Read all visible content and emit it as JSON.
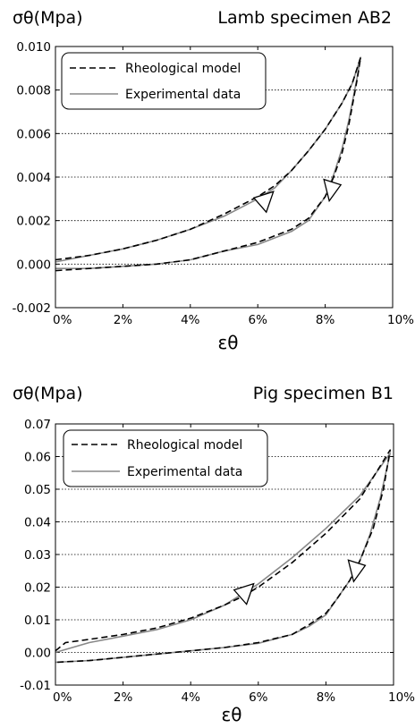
{
  "chart_data": [
    {
      "type": "line",
      "title": "Lamb specimen AB2",
      "ylabel": "σθ(Mpa)",
      "xlabel": "εθ",
      "xlim": [
        0,
        10
      ],
      "ylim": [
        -0.002,
        0.01
      ],
      "x_ticks": [
        "0%",
        "2%",
        "4%",
        "6%",
        "8%",
        "10%"
      ],
      "y_ticks": [
        "-0.002",
        "0.000",
        "0.002",
        "0.004",
        "0.006",
        "0.008",
        "0.010"
      ],
      "grid": "horizontal",
      "legend": "top-left",
      "series": [
        {
          "name": "Rheological model",
          "style": "dashed",
          "color": "#000000",
          "x": [
            0,
            1,
            2,
            3,
            4,
            5,
            5.5,
            6,
            6.5,
            7,
            7.5,
            8,
            8.5,
            8.8,
            9.05,
            8.95,
            8.7,
            8.5,
            8.25,
            8,
            7.5,
            7,
            6,
            5,
            4,
            3,
            2,
            1,
            0
          ],
          "y": [
            0.0002,
            0.0004,
            0.0007,
            0.0011,
            0.0016,
            0.0023,
            0.0027,
            0.0031,
            0.0036,
            0.0043,
            0.0052,
            0.0062,
            0.0074,
            0.0083,
            0.0095,
            0.0085,
            0.0064,
            0.0051,
            0.004,
            0.0031,
            0.0021,
            0.0016,
            0.001,
            0.0006,
            0.0002,
            0.0,
            -0.0001,
            -0.0002,
            -0.0003
          ]
        },
        {
          "name": "Experimental data",
          "style": "solid",
          "color": "#888888",
          "x": [
            0,
            1,
            2,
            3,
            4,
            5,
            5.5,
            6,
            6.5,
            7,
            7.5,
            8,
            8.5,
            8.8,
            9.05,
            8.95,
            8.7,
            8.5,
            8.25,
            8,
            7.5,
            7,
            6,
            5,
            4,
            3,
            2,
            1,
            0
          ],
          "y": [
            0.0001,
            0.0004,
            0.0007,
            0.0011,
            0.0016,
            0.0022,
            0.0026,
            0.003,
            0.0035,
            0.0043,
            0.0052,
            0.0062,
            0.0074,
            0.0083,
            0.0095,
            0.0086,
            0.0066,
            0.0053,
            0.0041,
            0.0031,
            0.002,
            0.0015,
            0.0009,
            0.0006,
            0.0002,
            0.0,
            -0.0001,
            -0.0002,
            -0.0002
          ]
        }
      ]
    },
    {
      "type": "line",
      "title": "Pig specimen B1",
      "ylabel": "σθ(Mpa)",
      "xlabel": "εθ",
      "xlim": [
        0,
        10
      ],
      "ylim": [
        -0.01,
        0.07
      ],
      "x_ticks": [
        "0%",
        "2%",
        "4%",
        "6%",
        "8%",
        "10%"
      ],
      "y_ticks": [
        "-0.01",
        "0.00",
        "0.01",
        "0.02",
        "0.03",
        "0.04",
        "0.05",
        "0.06",
        "0.07"
      ],
      "grid": "horizontal",
      "legend": "top-left",
      "series": [
        {
          "name": "Rheological model",
          "style": "dashed",
          "color": "#000000",
          "x": [
            0,
            0.3,
            1,
            2,
            3,
            4,
            5,
            5.5,
            6,
            7,
            8,
            9,
            9.9,
            9.7,
            9.4,
            9,
            8.7,
            8.3,
            8,
            7.5,
            7,
            6,
            5,
            4,
            3,
            2,
            1,
            0
          ],
          "y": [
            0.0005,
            0.003,
            0.004,
            0.0055,
            0.0075,
            0.0105,
            0.0145,
            0.017,
            0.02,
            0.0275,
            0.0365,
            0.047,
            0.062,
            0.05,
            0.038,
            0.028,
            0.022,
            0.016,
            0.012,
            0.0085,
            0.0055,
            0.003,
            0.0015,
            0.0005,
            -0.0005,
            -0.0015,
            -0.0025,
            -0.003
          ]
        },
        {
          "name": "Experimental data",
          "style": "solid",
          "color": "#888888",
          "x": [
            0,
            1,
            2,
            3,
            4,
            5,
            6,
            7,
            8,
            9,
            9.9,
            9.6,
            9.3,
            9,
            8.7,
            8.3,
            8,
            7.5,
            7,
            6,
            5,
            4,
            3,
            2,
            1,
            0
          ],
          "y": [
            0.0,
            0.003,
            0.005,
            0.007,
            0.01,
            0.0145,
            0.021,
            0.029,
            0.038,
            0.048,
            0.061,
            0.047,
            0.036,
            0.028,
            0.022,
            0.016,
            0.0115,
            0.008,
            0.0055,
            0.0028,
            0.0015,
            0.0005,
            -0.0005,
            -0.0015,
            -0.0025,
            -0.003
          ]
        }
      ]
    }
  ]
}
